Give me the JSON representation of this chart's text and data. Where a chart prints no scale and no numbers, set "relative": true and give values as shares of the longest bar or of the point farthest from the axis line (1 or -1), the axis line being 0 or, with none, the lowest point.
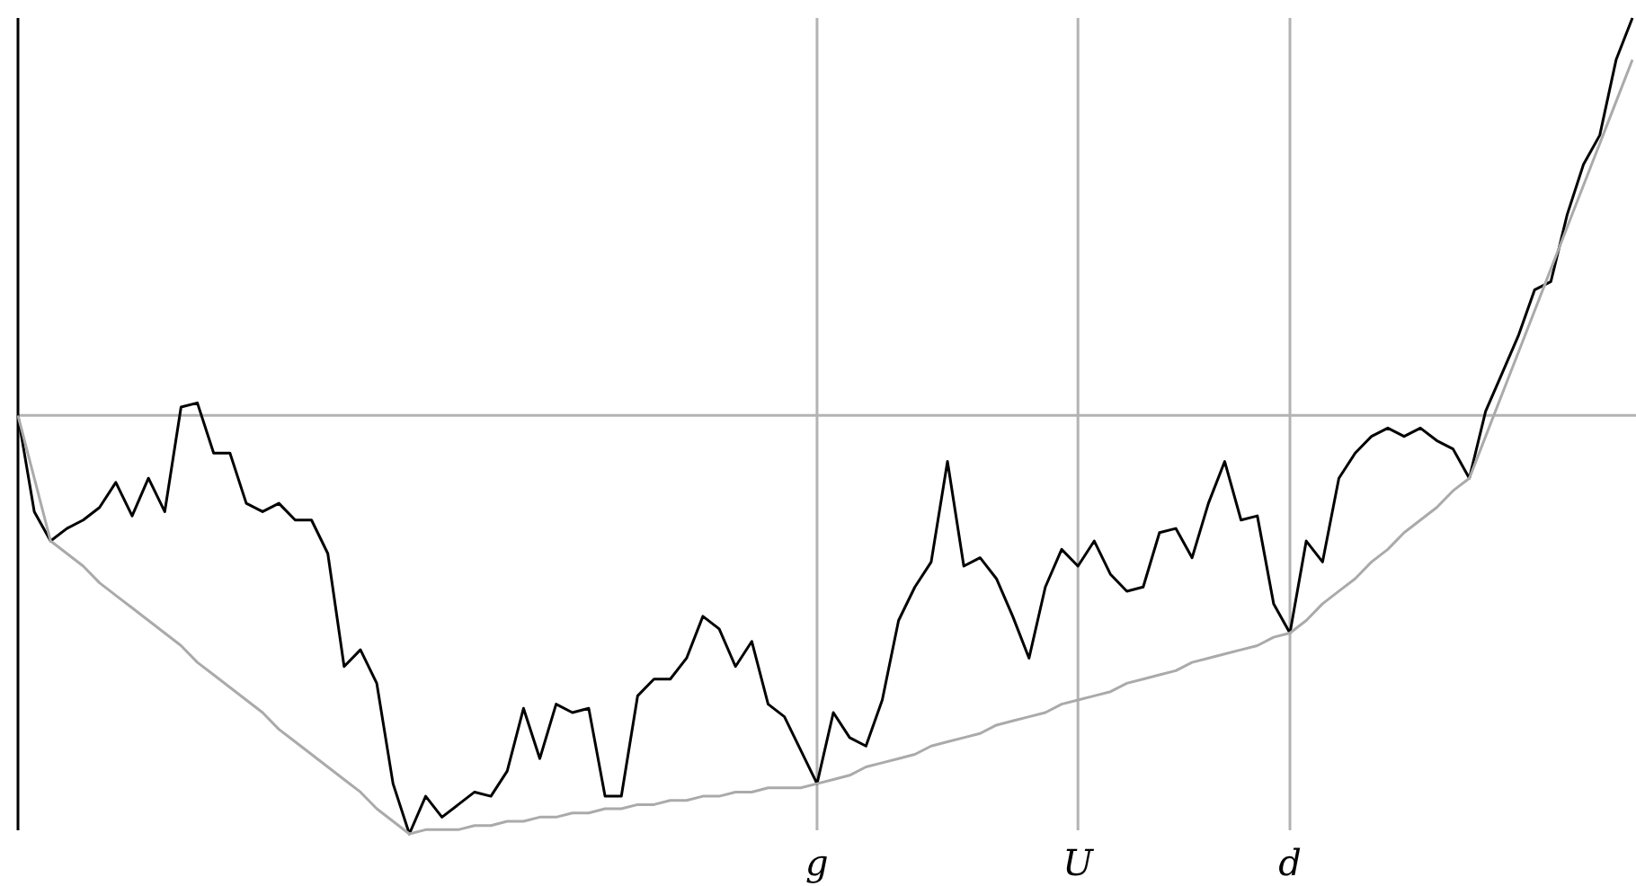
{
  "chart_data": {
    "type": "line",
    "relative": true,
    "categories": [
      null,
      null,
      null,
      null,
      null,
      null,
      null,
      null,
      null,
      null,
      null,
      null,
      null,
      null,
      null,
      null,
      null,
      null,
      null,
      null,
      null,
      null,
      null,
      null,
      null,
      null,
      null,
      null,
      null,
      null,
      null,
      null,
      null,
      null,
      null,
      null,
      null,
      null,
      null,
      null,
      null,
      null,
      null,
      null,
      null,
      null,
      null,
      null,
      null,
      "g",
      null,
      null,
      null,
      null,
      null,
      null,
      null,
      null,
      null,
      null,
      null,
      null,
      null,
      null,
      null,
      "U",
      null,
      null,
      null,
      null,
      null,
      null,
      null,
      null,
      null,
      null,
      null,
      null,
      "d",
      null,
      null,
      null,
      null,
      null,
      null,
      null,
      null,
      null,
      null,
      null,
      null,
      null,
      null,
      null,
      null,
      null,
      null,
      null,
      null,
      null
    ],
    "grid": "x",
    "marker": "none",
    "line_style": "solid",
    "series": [
      {
        "color": "#000000",
        "values": [
          0,
          -0.23,
          -0.3,
          -0.27,
          -0.25,
          -0.22,
          -0.16,
          -0.24,
          -0.15,
          -0.23,
          0.02,
          0.03,
          -0.09,
          -0.09,
          -0.21,
          -0.23,
          -0.21,
          -0.25,
          -0.25,
          -0.33,
          -0.6,
          -0.56,
          -0.64,
          -0.88,
          -1,
          -0.91,
          -0.96,
          -0.93,
          -0.9,
          -0.91,
          -0.85,
          -0.7,
          -0.82,
          -0.69,
          -0.71,
          -0.7,
          -0.91,
          -0.91,
          -0.67,
          -0.63,
          -0.63,
          -0.58,
          -0.48,
          -0.51,
          -0.6,
          -0.54,
          -0.69,
          -0.72,
          -0.8,
          -0.88,
          -0.71,
          -0.77,
          -0.79,
          -0.68,
          -0.49,
          -0.41,
          -0.35,
          -0.11,
          -0.36,
          -0.34,
          -0.39,
          -0.48,
          -0.58,
          -0.41,
          -0.32,
          -0.36,
          -0.3,
          -0.38,
          -0.42,
          -0.41,
          -0.28,
          -0.27,
          -0.34,
          -0.21,
          -0.11,
          -0.25,
          -0.24,
          -0.45,
          -0.52,
          -0.3,
          -0.35,
          -0.15,
          -0.09,
          -0.05,
          -0.03,
          -0.05,
          -0.03,
          -0.06,
          -0.08,
          -0.15,
          0.01,
          0.1,
          0.19,
          0.3,
          0.32,
          0.48,
          0.6,
          0.67,
          0.85,
          0.95
        ]
      },
      {
        "color": "#aaaaaa",
        "values": [
          0,
          -0.15,
          -0.3,
          -0.33,
          -0.36,
          -0.4,
          -0.43,
          -0.46,
          -0.49,
          -0.52,
          -0.55,
          -0.59,
          -0.62,
          -0.65,
          -0.68,
          -0.71,
          -0.75,
          -0.78,
          -0.81,
          -0.84,
          -0.87,
          -0.9,
          -0.94,
          -0.97,
          -1,
          -0.99,
          -0.99,
          -0.99,
          -0.98,
          -0.98,
          -0.97,
          -0.97,
          -0.96,
          -0.96,
          -0.95,
          -0.95,
          -0.94,
          -0.94,
          -0.93,
          -0.93,
          -0.92,
          -0.92,
          -0.91,
          -0.91,
          -0.9,
          -0.9,
          -0.89,
          -0.89,
          -0.89,
          -0.88,
          -0.87,
          -0.86,
          -0.84,
          -0.83,
          -0.82,
          -0.81,
          -0.79,
          -0.78,
          -0.77,
          -0.76,
          -0.74,
          -0.73,
          -0.72,
          -0.71,
          -0.69,
          -0.68,
          -0.67,
          -0.66,
          -0.64,
          -0.63,
          -0.62,
          -0.61,
          -0.59,
          -0.58,
          -0.57,
          -0.56,
          -0.55,
          -0.53,
          -0.52,
          -0.49,
          -0.45,
          -0.42,
          -0.39,
          -0.35,
          -0.32,
          -0.28,
          -0.25,
          -0.22,
          -0.18,
          -0.15,
          -0.05,
          0.05,
          0.15,
          0.25,
          0.35,
          0.45,
          0.55,
          0.65,
          0.75,
          0.85
        ]
      }
    ]
  }
}
